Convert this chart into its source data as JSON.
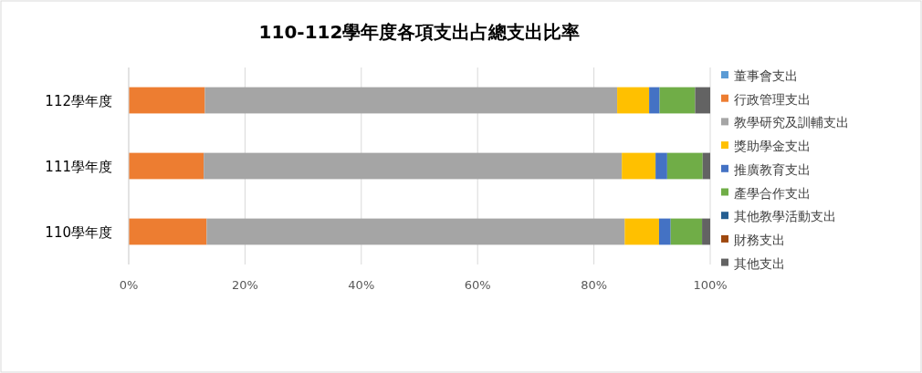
{
  "chart_data": {
    "type": "bar",
    "title": "110-112學年度各項支出占總支出比率",
    "orientation": "horizontal",
    "stacked": true,
    "categories": [
      "112學年度",
      "111學年度",
      "110學年度"
    ],
    "series": [
      {
        "name": "董事會支出",
        "color": "#5b9bd5",
        "values": [
          0,
          0,
          0
        ]
      },
      {
        "name": "行政管理支出",
        "color": "#ed7d31",
        "values": [
          13.1,
          12.9,
          13.4
        ]
      },
      {
        "name": "教學研究及訓輔支出",
        "color": "#a5a5a5",
        "values": [
          70.9,
          71.9,
          71.9
        ]
      },
      {
        "name": "獎助學金支出",
        "color": "#ffc000",
        "values": [
          5.5,
          5.8,
          5.9
        ]
      },
      {
        "name": "推廣教育支出",
        "color": "#4472c4",
        "values": [
          1.8,
          2.0,
          2.0
        ]
      },
      {
        "name": "產學合作支出",
        "color": "#70ad47",
        "values": [
          6.1,
          6.1,
          5.4
        ]
      },
      {
        "name": "其他教學活動支出",
        "color": "#255e91",
        "values": [
          0,
          0,
          0
        ]
      },
      {
        "name": "財務支出",
        "color": "#9e480e",
        "values": [
          0,
          0,
          0
        ]
      },
      {
        "name": "其他支出",
        "color": "#636363",
        "values": [
          2.6,
          1.3,
          1.4
        ]
      }
    ],
    "xlim": [
      0,
      100
    ],
    "xticks": [
      {
        "value": 0,
        "label": "0%"
      },
      {
        "value": 20,
        "label": "20%"
      },
      {
        "value": 40,
        "label": "40%"
      },
      {
        "value": 60,
        "label": "60%"
      },
      {
        "value": 80,
        "label": "80%"
      },
      {
        "value": 100,
        "label": "100%"
      }
    ],
    "grid": "x",
    "legend": "right"
  }
}
